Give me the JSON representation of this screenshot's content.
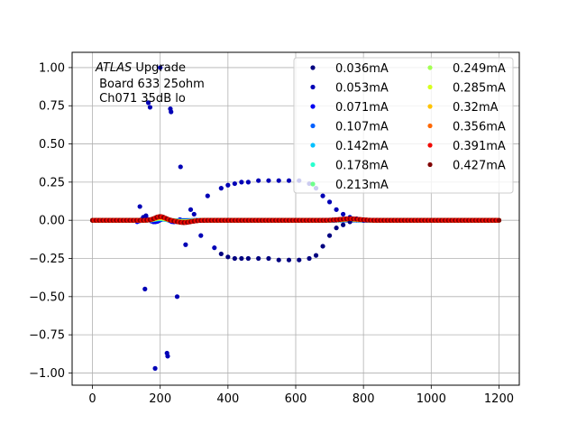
{
  "chart_data": {
    "type": "scatter",
    "title": "",
    "xlabel": "",
    "ylabel": "",
    "xlim": [
      -60,
      1260
    ],
    "ylim": [
      -1.08,
      1.1
    ],
    "xticks": [
      0,
      200,
      400,
      600,
      800,
      1000,
      1200
    ],
    "yticks": [
      -1.0,
      -0.75,
      -0.5,
      -0.25,
      0.0,
      0.25,
      0.5,
      0.75,
      1.0
    ],
    "xtick_labels": [
      "0",
      "200",
      "400",
      "600",
      "800",
      "1000",
      "1200"
    ],
    "ytick_labels": [
      "−1.00",
      "−0.75",
      "−0.50",
      "−0.25",
      "0.00",
      "0.25",
      "0.50",
      "0.75",
      "1.00"
    ],
    "grid": true,
    "legend_position": "top-right",
    "legend_columns": 2,
    "annotation": {
      "line1_italic": "ATLAS",
      "line1_rest": " Upgrade",
      "line2": " Board 633 25ohm",
      "line3": " Ch071 35dB lo"
    },
    "series": [
      {
        "name": "0.036mA",
        "color": "#000080"
      },
      {
        "name": "0.053mA",
        "color": "#0000b6"
      },
      {
        "name": "0.071mA",
        "color": "#0000f1"
      },
      {
        "name": "0.107mA",
        "color": "#0060ff"
      },
      {
        "name": "0.142mA",
        "color": "#00c0ff"
      },
      {
        "name": "0.178mA",
        "color": "#29ffce"
      },
      {
        "name": "0.213mA",
        "color": "#6dff8a"
      },
      {
        "name": "0.249mA",
        "color": "#a4ff53"
      },
      {
        "name": "0.285mA",
        "color": "#d7ff1f"
      },
      {
        "name": "0.32mA",
        "color": "#ffc400"
      },
      {
        "name": "0.356mA",
        "color": "#ff6800"
      },
      {
        "name": "0.391mA",
        "color": "#f10800"
      },
      {
        "name": "0.427mA",
        "color": "#800000"
      }
    ],
    "highlight_points": {
      "series_index": 1,
      "x": [
        140,
        150,
        155,
        158,
        165,
        170,
        185,
        200,
        220,
        222,
        230,
        232,
        250,
        260,
        275,
        290,
        300,
        320,
        340,
        360,
        380,
        400,
        420,
        440,
        460,
        490,
        520,
        550,
        580,
        610,
        640,
        660,
        680,
        700,
        720,
        740,
        760,
        780,
        800
      ],
      "y": [
        0.09,
        0.02,
        -0.45,
        0.03,
        0.77,
        0.74,
        -0.97,
        1.0,
        -0.87,
        -0.89,
        0.73,
        0.71,
        -0.5,
        0.35,
        -0.16,
        0.07,
        0.04,
        -0.1,
        0.16,
        -0.18,
        0.21,
        0.23,
        0.24,
        0.25,
        0.25,
        0.26,
        0.26,
        0.26,
        0.26,
        0.26,
        0.24,
        0.21,
        0.16,
        0.12,
        0.07,
        0.04,
        0.02,
        0.01,
        0.0
      ]
    },
    "mirror_points": {
      "series_index": 0,
      "x": [
        380,
        400,
        420,
        440,
        460,
        490,
        520,
        550,
        580,
        610,
        640,
        660,
        680,
        700,
        720,
        740,
        760
      ],
      "y": [
        -0.22,
        -0.24,
        -0.25,
        -0.25,
        -0.25,
        -0.25,
        -0.25,
        -0.26,
        -0.26,
        -0.26,
        -0.25,
        -0.23,
        -0.17,
        -0.1,
        -0.05,
        -0.03,
        -0.01
      ]
    },
    "baseline_series_index": 12,
    "baseline_bump": {
      "center_x": 200,
      "amplitude": 0.025,
      "dip_center_x": 270,
      "dip_amplitude": -0.015,
      "hump2_center_x": 760,
      "hump2_amplitude": 0.01
    }
  }
}
